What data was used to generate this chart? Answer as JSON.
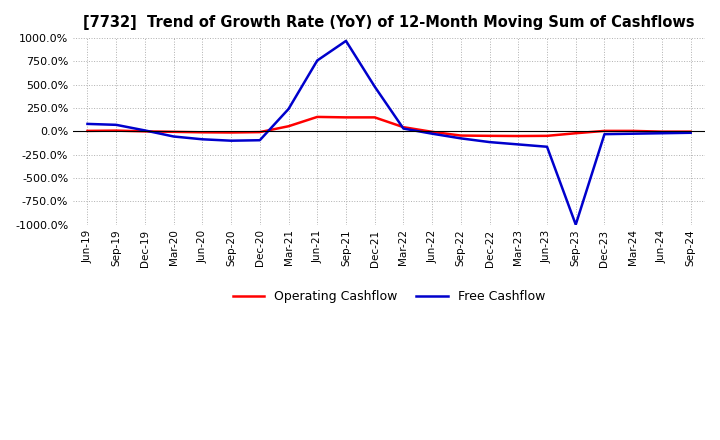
{
  "title": "[7732]  Trend of Growth Rate (YoY) of 12-Month Moving Sum of Cashflows",
  "ylim": [
    -1000,
    1000
  ],
  "yticks": [
    -1000,
    -750,
    -500,
    -250,
    0,
    250,
    500,
    750,
    1000
  ],
  "background_color": "#ffffff",
  "plot_bg_color": "#ffffff",
  "grid_color": "#b0b0b0",
  "legend_labels": [
    "Operating Cashflow",
    "Free Cashflow"
  ],
  "operating_color": "#ff0000",
  "free_color": "#0000cc",
  "x_labels": [
    "Jun-19",
    "Sep-19",
    "Dec-19",
    "Mar-20",
    "Jun-20",
    "Sep-20",
    "Dec-20",
    "Mar-21",
    "Jun-21",
    "Sep-21",
    "Dec-21",
    "Mar-22",
    "Jun-22",
    "Sep-22",
    "Dec-22",
    "Mar-23",
    "Jun-23",
    "Sep-23",
    "Dec-23",
    "Mar-24",
    "Jun-24",
    "Sep-24"
  ],
  "operating_cashflow": [
    5,
    8,
    0,
    -5,
    -10,
    -12,
    -8,
    55,
    155,
    150,
    150,
    45,
    -5,
    -45,
    -48,
    -50,
    -48,
    -20,
    5,
    5,
    -3,
    -3
  ],
  "free_cashflow": [
    80,
    70,
    10,
    -55,
    -85,
    -100,
    -95,
    240,
    760,
    970,
    480,
    30,
    -25,
    -75,
    -115,
    -140,
    -165,
    -1000,
    -30,
    -25,
    -20,
    -15
  ]
}
